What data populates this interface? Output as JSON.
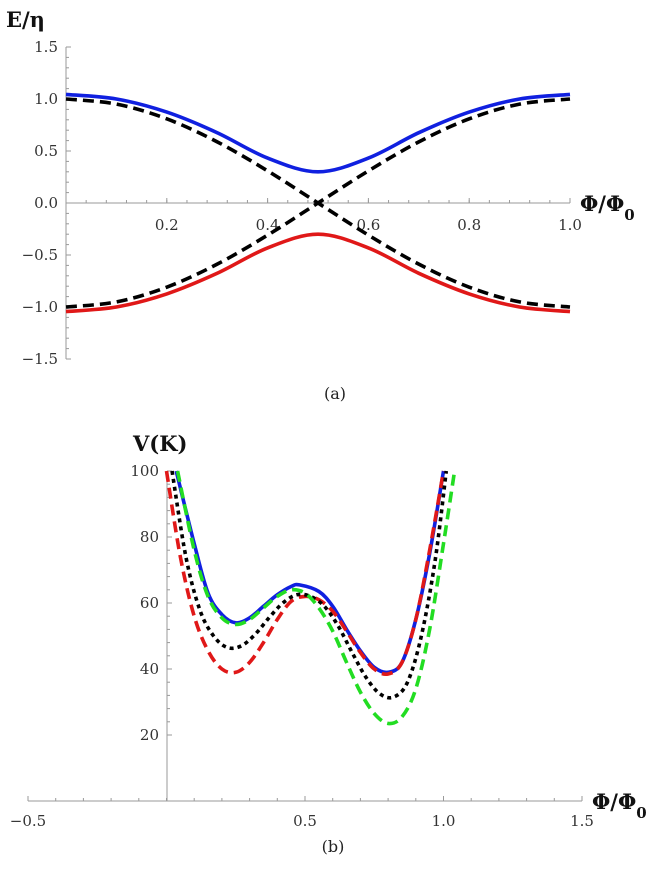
{
  "chart_data": [
    {
      "id": "a",
      "type": "line",
      "caption": "(a)",
      "xlabel": "Φ/Φ",
      "xlabel_sub": "0",
      "ylabel": "E/η",
      "xlim": [
        0,
        1.0
      ],
      "ylim": [
        -1.5,
        1.5
      ],
      "xticks": [
        "0.2",
        "0.4",
        "0.6",
        "0.8",
        "1.0"
      ],
      "yticks": [
        "1.5",
        "1.0",
        "0.5",
        "0.0",
        "−0.5",
        "−1.0",
        "−1.5"
      ],
      "grid": false,
      "series": [
        {
          "style": "solid",
          "color": "#1020e0",
          "x": [
            0,
            0.1,
            0.2,
            0.3,
            0.4,
            0.5,
            0.6,
            0.7,
            0.8,
            0.9,
            1.0
          ],
          "y": [
            1.044,
            1.0,
            0.874,
            0.676,
            0.432,
            0.3,
            0.432,
            0.676,
            0.874,
            1.0,
            1.044
          ]
        },
        {
          "style": "solid",
          "color": "#e01818",
          "x": [
            0,
            0.1,
            0.2,
            0.3,
            0.4,
            0.5,
            0.6,
            0.7,
            0.8,
            0.9,
            1.0
          ],
          "y": [
            -1.044,
            -1.0,
            -0.874,
            -0.676,
            -0.432,
            -0.3,
            -0.432,
            -0.676,
            -0.874,
            -1.0,
            -1.044
          ]
        },
        {
          "style": "dashed",
          "color": "#000000",
          "x": [
            0,
            0.1,
            0.2,
            0.3,
            0.4,
            0.5,
            0.6,
            0.7,
            0.8,
            0.9,
            1.0
          ],
          "y": [
            1.0,
            0.951,
            0.809,
            0.588,
            0.309,
            0.0,
            -0.309,
            -0.588,
            -0.809,
            -0.951,
            -1.0
          ]
        },
        {
          "style": "dashed",
          "color": "#000000",
          "x": [
            0,
            0.1,
            0.2,
            0.3,
            0.4,
            0.5,
            0.6,
            0.7,
            0.8,
            0.9,
            1.0
          ],
          "y": [
            -1.0,
            -0.951,
            -0.809,
            -0.588,
            -0.309,
            0.0,
            0.309,
            0.588,
            0.809,
            0.951,
            1.0
          ]
        }
      ]
    },
    {
      "id": "b",
      "type": "line",
      "caption": "(b)",
      "xlabel": "Φ/Φ",
      "xlabel_sub": "0",
      "ylabel": "V(K)",
      "xlim": [
        -0.5,
        1.5
      ],
      "ylim": [
        0,
        100
      ],
      "xticks": [
        "−0.5",
        "0.5",
        "1.0",
        "1.5"
      ],
      "yticks": [
        "100",
        "80",
        "60",
        "40",
        "20"
      ],
      "grid": false,
      "series": [
        {
          "style": "solid",
          "color": "#1020e0",
          "x": [
            0.035,
            0.1,
            0.15,
            0.2,
            0.25,
            0.3,
            0.35,
            0.4,
            0.45,
            0.48,
            0.55,
            0.6,
            0.65,
            0.7,
            0.75,
            0.8,
            0.85,
            0.9,
            0.95,
            1.0
          ],
          "y": [
            100,
            78,
            63,
            56.5,
            54,
            55.5,
            59,
            62.5,
            65,
            65.5,
            63.5,
            59,
            52,
            45.5,
            40.5,
            39,
            42,
            55,
            75,
            100
          ]
        },
        {
          "style": "dashed",
          "color": "#e01818",
          "x": [
            0.0,
            0.05,
            0.1,
            0.15,
            0.2,
            0.25,
            0.3,
            0.35,
            0.4,
            0.45,
            0.5,
            0.55,
            0.6,
            0.65,
            0.7,
            0.75,
            0.8,
            0.85,
            0.9,
            0.95,
            1.0
          ],
          "y": [
            100,
            74,
            56,
            45.5,
            40,
            39,
            42,
            48,
            55,
            60.5,
            62,
            61,
            57.5,
            51.5,
            45,
            40,
            38.5,
            42,
            55,
            76,
            100
          ]
        },
        {
          "style": "dotted",
          "color": "#000000",
          "x": [
            0.02,
            0.07,
            0.12,
            0.17,
            0.22,
            0.27,
            0.32,
            0.37,
            0.42,
            0.47,
            0.52,
            0.57,
            0.62,
            0.67,
            0.72,
            0.77,
            0.82,
            0.87,
            0.92,
            0.97,
            1.01
          ],
          "y": [
            100,
            74,
            58,
            50,
            46.5,
            47,
            50.5,
            55.5,
            60,
            62.5,
            62,
            59,
            53,
            45,
            37.5,
            32.5,
            31.5,
            36,
            50,
            73,
            100
          ]
        },
        {
          "style": "dashed",
          "color": "#22dd22",
          "x": [
            0.04,
            0.1,
            0.15,
            0.2,
            0.25,
            0.3,
            0.35,
            0.4,
            0.45,
            0.5,
            0.55,
            0.6,
            0.65,
            0.7,
            0.75,
            0.8,
            0.85,
            0.9,
            0.95,
            1.0,
            1.04
          ],
          "y": [
            100,
            76,
            62,
            55.5,
            53.5,
            55,
            58.5,
            62,
            64,
            63,
            58.5,
            51.5,
            42,
            33,
            26.5,
            23.5,
            25.5,
            34,
            52,
            78,
            100
          ]
        }
      ]
    }
  ]
}
